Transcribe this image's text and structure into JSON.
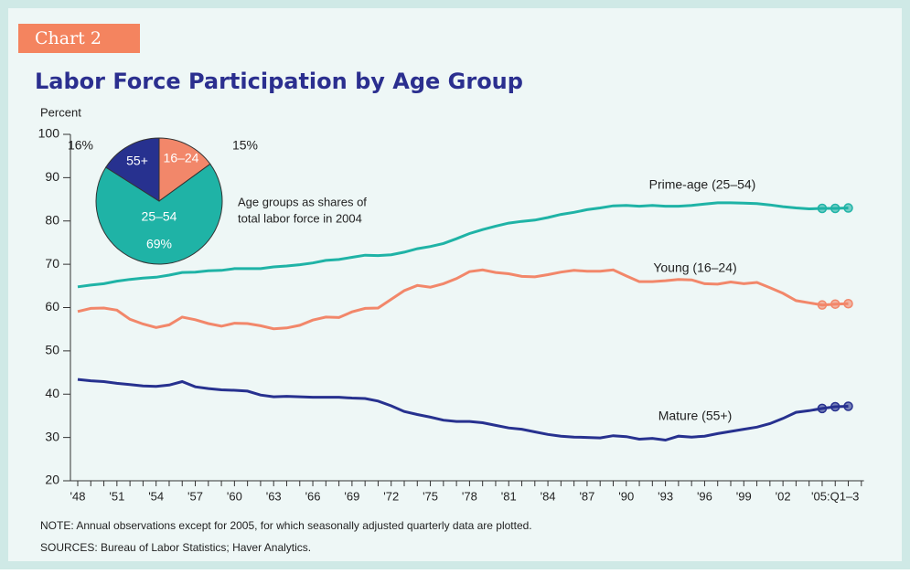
{
  "header": {
    "tag": "Chart 2"
  },
  "chart_data": [
    {
      "type": "line",
      "title": "Labor Force Participation by Age Group",
      "y_label": "Percent",
      "categories": [
        "'48",
        null,
        null,
        "'51",
        null,
        null,
        "'54",
        null,
        null,
        "'57",
        null,
        null,
        "'60",
        null,
        null,
        "'63",
        null,
        null,
        "'66",
        null,
        null,
        "'69",
        null,
        null,
        "'72",
        null,
        null,
        "'75",
        null,
        null,
        "'78",
        null,
        null,
        "'81",
        null,
        null,
        "'84",
        null,
        null,
        "'87",
        null,
        null,
        "'90",
        null,
        null,
        "'93",
        null,
        null,
        "'96",
        null,
        null,
        "'99",
        null,
        null,
        "'02",
        null,
        null,
        null,
        "'05:Q1–3",
        null
      ],
      "ylim": [
        20,
        100
      ],
      "yticks": [
        20,
        30,
        40,
        50,
        60,
        70,
        80,
        90,
        100
      ],
      "series": [
        {
          "name": "Prime-age (25–54)",
          "color": "#1fb3a6",
          "values": [
            64.8,
            65.2,
            65.5,
            66.1,
            66.5,
            66.8,
            67.0,
            67.5,
            68.1,
            68.2,
            68.5,
            68.6,
            69.0,
            69.0,
            69.0,
            69.4,
            69.6,
            69.9,
            70.3,
            70.9,
            71.1,
            71.6,
            72.1,
            72.0,
            72.2,
            72.8,
            73.6,
            74.1,
            74.8,
            75.9,
            77.1,
            78.0,
            78.8,
            79.5,
            79.9,
            80.2,
            80.8,
            81.5,
            82.0,
            82.6,
            83.0,
            83.5,
            83.6,
            83.4,
            83.6,
            83.4,
            83.4,
            83.6,
            83.9,
            84.2,
            84.2,
            84.1,
            84.0,
            83.7,
            83.3,
            83.0,
            82.8,
            82.9,
            82.9,
            83.0
          ]
        },
        {
          "name": "Young (16–24)",
          "color": "#f2876a",
          "values": [
            59.1,
            59.8,
            59.9,
            59.4,
            57.3,
            56.2,
            55.4,
            56.0,
            57.8,
            57.2,
            56.3,
            55.7,
            56.4,
            56.3,
            55.8,
            55.1,
            55.3,
            55.9,
            57.1,
            57.8,
            57.7,
            59.0,
            59.8,
            59.9,
            61.9,
            63.9,
            65.1,
            64.7,
            65.5,
            66.7,
            68.3,
            68.7,
            68.1,
            67.8,
            67.2,
            67.1,
            67.6,
            68.2,
            68.6,
            68.4,
            68.4,
            68.7,
            67.3,
            66.0,
            66.0,
            66.2,
            66.5,
            66.4,
            65.5,
            65.4,
            65.9,
            65.5,
            65.8,
            64.6,
            63.3,
            61.6,
            61.1,
            60.6,
            60.8,
            60.9
          ]
        },
        {
          "name": "Mature (55+)",
          "color": "#27318f",
          "values": [
            43.4,
            43.1,
            42.9,
            42.5,
            42.2,
            41.9,
            41.8,
            42.1,
            42.9,
            41.7,
            41.3,
            41.0,
            40.9,
            40.7,
            39.8,
            39.4,
            39.5,
            39.4,
            39.3,
            39.3,
            39.3,
            39.1,
            39.0,
            38.4,
            37.3,
            36.0,
            35.3,
            34.7,
            34.0,
            33.7,
            33.7,
            33.4,
            32.8,
            32.2,
            31.9,
            31.3,
            30.7,
            30.3,
            30.1,
            30.0,
            29.9,
            30.4,
            30.2,
            29.6,
            29.8,
            29.4,
            30.3,
            30.1,
            30.3,
            30.9,
            31.4,
            31.9,
            32.4,
            33.2,
            34.4,
            35.8,
            36.2,
            36.7,
            37.1,
            37.2
          ]
        }
      ]
    },
    {
      "type": "pie",
      "annotation_lines": [
        "Age groups as shares of",
        "total labor force in 2004"
      ],
      "categories": [
        "16–24",
        "25–54",
        "55+"
      ],
      "values": [
        15,
        69,
        16
      ],
      "value_labels": [
        "15%",
        "69%",
        "16%"
      ],
      "colors": [
        "#f2876a",
        "#1fb3a6",
        "#27318f"
      ]
    }
  ],
  "footer": {
    "note": "NOTE: Annual observations except for 2005, for which seasonally adjusted quarterly data are plotted.",
    "source": "SOURCES: Bureau of Labor Statistics; Haver Analytics."
  }
}
